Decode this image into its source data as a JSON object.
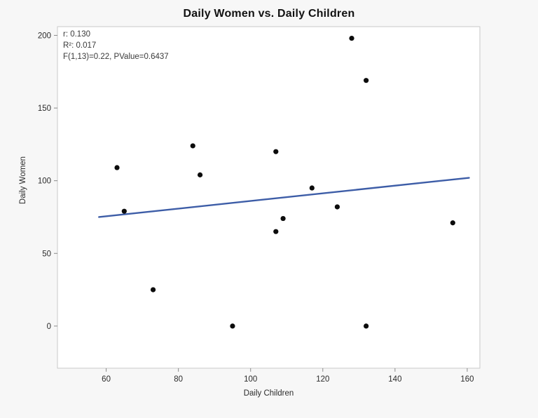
{
  "page": {
    "background": "#f7f7f7"
  },
  "chart_data": {
    "type": "scatter",
    "title": "Daily Women vs. Daily Children",
    "xlabel": "Daily Children",
    "ylabel": "Daily Women",
    "xlim": [
      46.5,
      163.5
    ],
    "ylim": [
      -29,
      206
    ],
    "x_ticks": [
      60,
      80,
      100,
      120,
      140,
      160
    ],
    "y_ticks": [
      0,
      50,
      100,
      150,
      200
    ],
    "grid": false,
    "legend": "none",
    "points": [
      {
        "x": 63,
        "y": 109
      },
      {
        "x": 65,
        "y": 79
      },
      {
        "x": 73,
        "y": 25
      },
      {
        "x": 84,
        "y": 124
      },
      {
        "x": 86,
        "y": 104
      },
      {
        "x": 95,
        "y": 0
      },
      {
        "x": 107,
        "y": 120
      },
      {
        "x": 107,
        "y": 65
      },
      {
        "x": 109,
        "y": 74
      },
      {
        "x": 117,
        "y": 95
      },
      {
        "x": 124,
        "y": 82
      },
      {
        "x": 128,
        "y": 198
      },
      {
        "x": 132,
        "y": 169
      },
      {
        "x": 132,
        "y": 0
      },
      {
        "x": 156,
        "y": 71
      }
    ],
    "trendline": {
      "x1": 58,
      "y1": 75,
      "x2": 160.5,
      "y2": 102
    },
    "annotation": {
      "line1": "r: 0.130",
      "line2": "R²: 0.017",
      "line3": "F(1,13)=0.22, PValue=0.6437"
    },
    "colors": {
      "point": "#0c0c0c",
      "trendline": "#3d5da7",
      "plot_border": "#c9c9c9",
      "tick": "#8a8a8a",
      "text": "#2b2b2b",
      "plot_bg": "#ffffff"
    }
  }
}
